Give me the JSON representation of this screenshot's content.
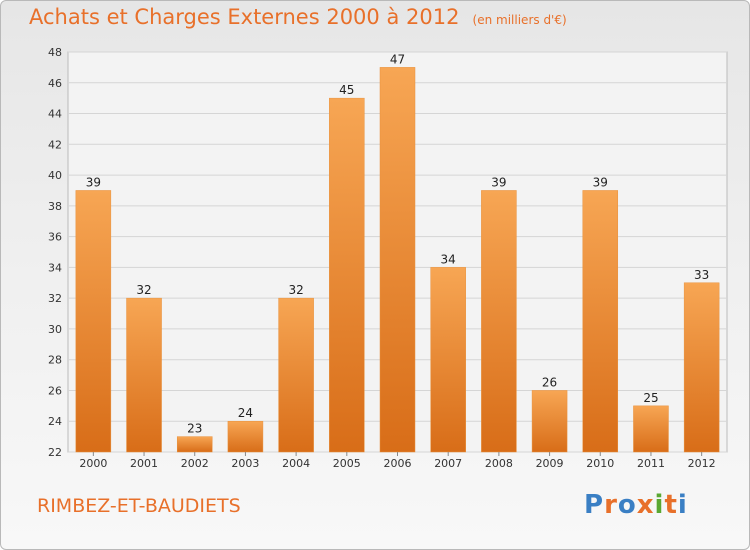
{
  "header": {
    "title": "Achats et Charges Externes 2000 à 2012",
    "subtitle": "(en milliers d'€)"
  },
  "footer": {
    "commune": "RIMBEZ-ET-BAUDIETS",
    "logo_text": "Proxiti",
    "logo_colors": [
      "#3a7fc4",
      "#e8702a",
      "#3a7fc4",
      "#e8702a",
      "#5aa832",
      "#e8702a",
      "#3a7fc4"
    ]
  },
  "colors": {
    "bar_top": "#f7a654",
    "bar_bottom": "#d86d18",
    "accent": "#e8702a",
    "grid": "#d5d5d5"
  },
  "chart_data": {
    "type": "bar",
    "title": "Achats et Charges Externes 2000 à 2012",
    "subtitle": "(en milliers d'€)",
    "categories": [
      "2000",
      "2001",
      "2002",
      "2003",
      "2004",
      "2005",
      "2006",
      "2007",
      "2008",
      "2009",
      "2010",
      "2011",
      "2012"
    ],
    "values": [
      39,
      32,
      23,
      24,
      32,
      45,
      47,
      34,
      39,
      26,
      39,
      25,
      33
    ],
    "ylim": [
      22,
      48
    ],
    "yticks": [
      22,
      24,
      26,
      28,
      30,
      32,
      34,
      36,
      38,
      40,
      42,
      44,
      46,
      48
    ],
    "grid": true,
    "data_labels": true,
    "xlabel": "",
    "ylabel": ""
  }
}
